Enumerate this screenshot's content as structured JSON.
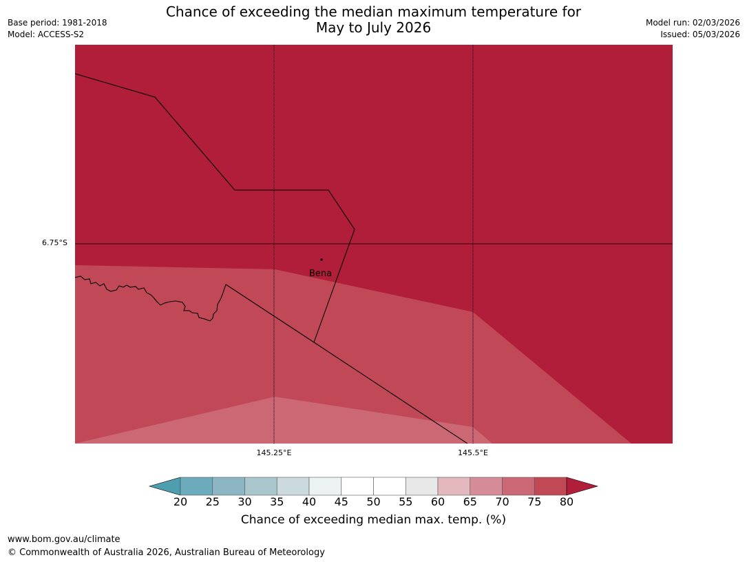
{
  "title": {
    "line1": "Chance of exceeding the median maximum temperature for",
    "line2": "May to July 2026"
  },
  "meta_left": {
    "base_period": "Base period: 1981-2018",
    "model": "Model: ACCESS-S2"
  },
  "meta_right": {
    "model_run": "Model run: 02/03/2026",
    "issued": "Issued: 05/03/2026"
  },
  "map": {
    "place_label": "Bena",
    "lat_label": "6.75°S",
    "lon_labels": [
      "145.25°E",
      "145.5°E"
    ],
    "zones": [
      {
        "band": "75-80",
        "color": "#c14856"
      },
      {
        "band": "70-75",
        "color": "#cb6874"
      },
      {
        "band": ">80",
        "color": "#b11e3a"
      }
    ]
  },
  "colorbar": {
    "ticks": [
      "20",
      "25",
      "30",
      "35",
      "40",
      "45",
      "50",
      "55",
      "60",
      "65",
      "70",
      "75",
      "80"
    ],
    "colors": [
      "#6babbc",
      "#8cb6c4",
      "#a9c6cd",
      "#cbdadc",
      "#ecf1f2",
      "#ffffff",
      "#ffffff",
      "#e8e8e8",
      "#e3b8be",
      "#d68c98",
      "#ca6975",
      "#c14855"
    ],
    "under_color": "#4d9fb0",
    "over_color": "#b11e3a",
    "label": "Chance of exceeding median max. temp. (%)"
  },
  "footer": {
    "url": "www.bom.gov.au/climate",
    "copyright": "© Commonwealth of Australia 2026, Australian Bureau of Meteorology"
  }
}
